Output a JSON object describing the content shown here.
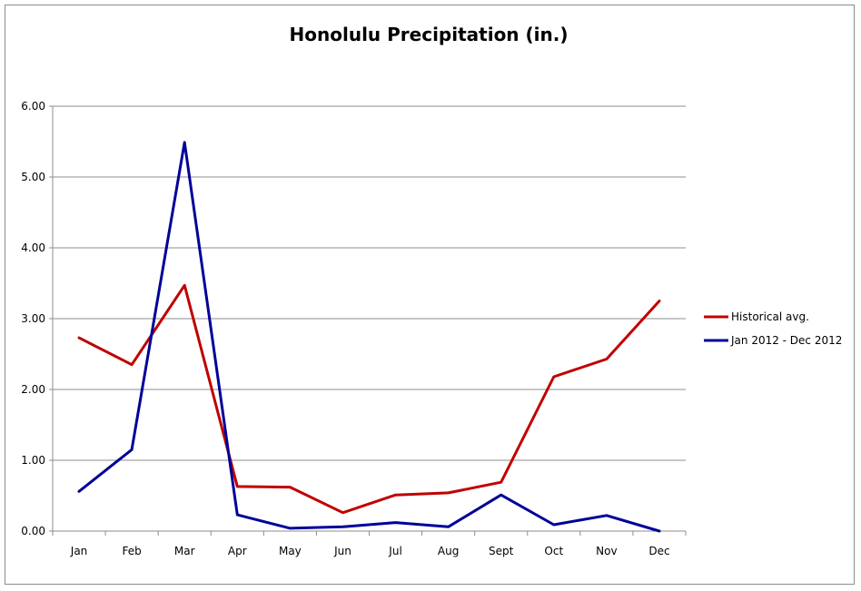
{
  "chart_data": {
    "type": "line",
    "title": "Honolulu Precipitation (in.)",
    "xlabel": "",
    "ylabel": "",
    "categories": [
      "Jan",
      "Feb",
      "Mar",
      "Apr",
      "May",
      "Jun",
      "Jul",
      "Aug",
      "Sept",
      "Oct",
      "Nov",
      "Dec"
    ],
    "series": [
      {
        "name": "Historical avg.",
        "color": "#c00000",
        "values": [
          2.73,
          2.35,
          3.47,
          0.63,
          0.62,
          0.26,
          0.51,
          0.54,
          0.69,
          2.18,
          2.43,
          3.25
        ]
      },
      {
        "name": "Jan 2012 - Dec 2012",
        "color": "#000099",
        "values": [
          0.56,
          1.15,
          5.49,
          0.23,
          0.04,
          0.06,
          0.12,
          0.06,
          0.51,
          0.09,
          0.22,
          0.0
        ]
      }
    ],
    "ylim": [
      0,
      6
    ],
    "y_ticks": [
      "0.00",
      "1.00",
      "2.00",
      "3.00",
      "4.00",
      "5.00",
      "6.00"
    ],
    "y_tick_values": [
      0,
      1,
      2,
      3,
      4,
      5,
      6
    ],
    "grid": true,
    "legend": "right"
  }
}
